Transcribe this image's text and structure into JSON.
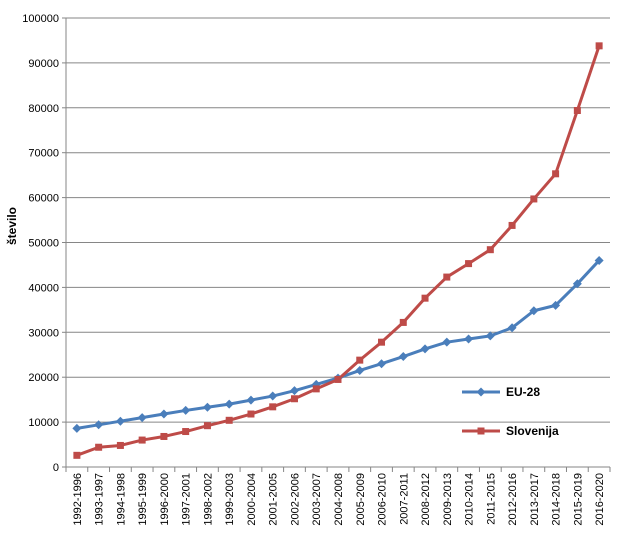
{
  "chart_data": {
    "type": "line",
    "title": "",
    "xlabel": "",
    "ylabel": "število",
    "ylim": [
      0,
      100000
    ],
    "yticks": [
      0,
      10000,
      20000,
      30000,
      40000,
      50000,
      60000,
      70000,
      80000,
      90000,
      100000
    ],
    "grid": "horizontal",
    "legend_position": "right",
    "categories": [
      "1992-1996",
      "1993-1997",
      "1994-1998",
      "1995-1999",
      "1996-2000",
      "1997-2001",
      "1998-2002",
      "1999-2003",
      "2000-2004",
      "2001-2005",
      "2002-2006",
      "2003-2007",
      "2004-2008",
      "2005-2009",
      "2006-2010",
      "2007-2011",
      "2008-2012",
      "2009-2013",
      "2010-2014",
      "2011-2015",
      "2012-2016",
      "2013-2017",
      "2014-2018",
      "2015-2019",
      "2016-2020"
    ],
    "series": [
      {
        "name": "EU-28",
        "color": "#4a7ebb",
        "marker": "diamond",
        "values": [
          8600,
          9400,
          10200,
          11000,
          11800,
          12600,
          13300,
          14000,
          14900,
          15800,
          17000,
          18400,
          19800,
          21500,
          23000,
          24600,
          26300,
          27800,
          28500,
          29200,
          31000,
          34800,
          36000,
          40800,
          46000
        ]
      },
      {
        "name": "Slovenija",
        "color": "#be4b48",
        "marker": "square",
        "values": [
          2600,
          4400,
          4800,
          6000,
          6800,
          7900,
          9200,
          10400,
          11800,
          13400,
          15200,
          17400,
          19500,
          23800,
          27800,
          32200,
          37600,
          42300,
          45300,
          48400,
          53800,
          59700,
          65300,
          79400,
          93800
        ]
      }
    ]
  }
}
